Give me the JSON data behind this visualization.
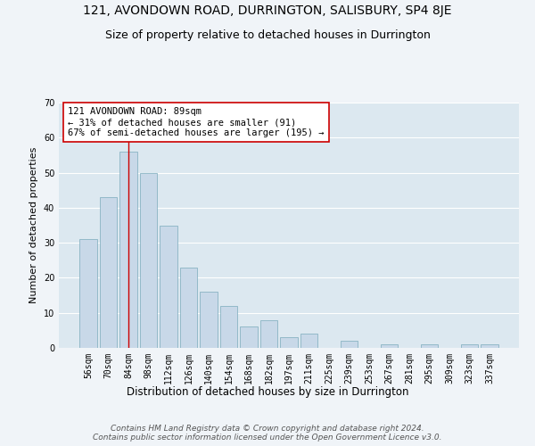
{
  "title1": "121, AVONDOWN ROAD, DURRINGTON, SALISBURY, SP4 8JE",
  "title2": "Size of property relative to detached houses in Durrington",
  "xlabel": "Distribution of detached houses by size in Durrington",
  "ylabel": "Number of detached properties",
  "categories": [
    "56sqm",
    "70sqm",
    "84sqm",
    "98sqm",
    "112sqm",
    "126sqm",
    "140sqm",
    "154sqm",
    "168sqm",
    "182sqm",
    "197sqm",
    "211sqm",
    "225sqm",
    "239sqm",
    "253sqm",
    "267sqm",
    "281sqm",
    "295sqm",
    "309sqm",
    "323sqm",
    "337sqm"
  ],
  "values": [
    31,
    43,
    56,
    50,
    35,
    23,
    16,
    12,
    6,
    8,
    3,
    4,
    0,
    2,
    0,
    1,
    0,
    1,
    0,
    1,
    1
  ],
  "bar_color": "#c8d8e8",
  "bar_edge_color": "#7aaabb",
  "background_color": "#dce8f0",
  "grid_color": "#ffffff",
  "ylim": [
    0,
    70
  ],
  "yticks": [
    0,
    10,
    20,
    30,
    40,
    50,
    60,
    70
  ],
  "property_line_color": "#cc0000",
  "annotation_text": "121 AVONDOWN ROAD: 89sqm\n← 31% of detached houses are smaller (91)\n67% of semi-detached houses are larger (195) →",
  "annotation_box_color": "#ffffff",
  "annotation_box_edge": "#cc0000",
  "footer": "Contains HM Land Registry data © Crown copyright and database right 2024.\nContains public sector information licensed under the Open Government Licence v3.0.",
  "title1_fontsize": 10,
  "title2_fontsize": 9,
  "xlabel_fontsize": 8.5,
  "ylabel_fontsize": 8,
  "tick_fontsize": 7,
  "annotation_fontsize": 7.5,
  "footer_fontsize": 6.5
}
